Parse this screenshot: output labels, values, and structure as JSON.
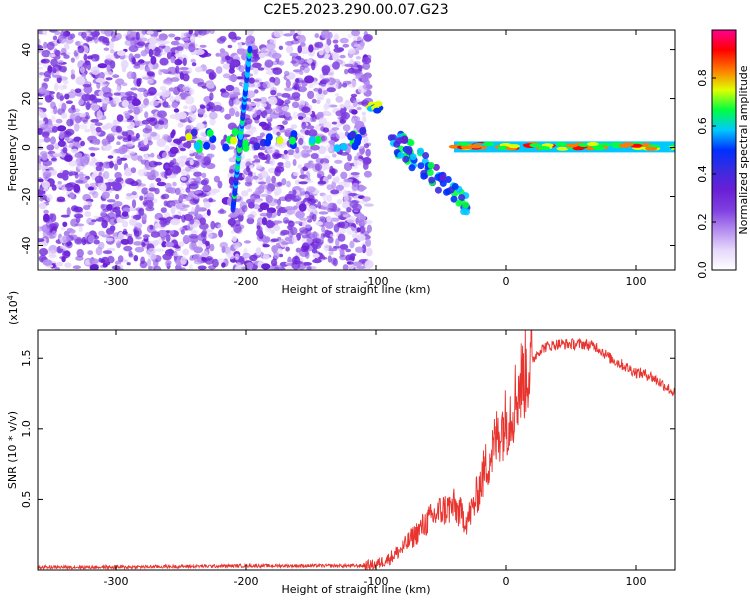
{
  "title": "C2E5.2023.290.00.07.G23",
  "colors": {
    "snr_line": "#e8332e",
    "colormap": [
      "#ffffff",
      "#e7d8fb",
      "#b48cf0",
      "#7f3fe0",
      "#6a1fd6",
      "#3a2be0",
      "#0030ff",
      "#00c8ff",
      "#00ff40",
      "#e0ff00",
      "#ff7a00",
      "#ff0000",
      "#ff0090"
    ]
  },
  "chart_data": [
    {
      "type": "heatmap",
      "xlabel": "Height of straight line (km)",
      "ylabel": "Frequency (Hz)",
      "xlim": [
        -360,
        130
      ],
      "ylim": [
        -50,
        48
      ],
      "xticks": [
        -300,
        -200,
        -100,
        0,
        100
      ],
      "yticks": [
        -40,
        -20,
        0,
        20,
        40
      ],
      "colorbar": {
        "label": "Normalized spectral amplitude",
        "range": [
          0,
          1
        ],
        "ticks": [
          "0.0",
          "0.2",
          "0.4",
          "0.6",
          "0.8"
        ]
      },
      "features": {
        "noise_region_km": [
          -360,
          -105
        ],
        "slanted_streak": {
          "x": [
            -210,
            -197
          ],
          "y": [
            -25,
            40
          ]
        },
        "carrier_line": {
          "x": [
            -40,
            130
          ],
          "y": [
            0,
            1
          ]
        },
        "descending_branch": {
          "x": [
            -90,
            -30
          ],
          "y": [
            5,
            -23
          ]
        },
        "early_patch": {
          "x": [
            -105,
            -95
          ],
          "y": [
            15,
            18
          ]
        }
      }
    },
    {
      "type": "line",
      "xlabel": "Height of straight line (km)",
      "ylabel": "SNR (10 * v/v)",
      "scale_note": "(x10",
      "scale_exp": "4",
      "scale_close": ")",
      "xlim": [
        -360,
        130
      ],
      "ylim": [
        0,
        1.7
      ],
      "xticks": [
        -300,
        -200,
        -100,
        0,
        100
      ],
      "yticks": [
        0.5,
        1.0,
        1.5
      ],
      "series": [
        {
          "x": [
            -360,
            -300,
            -250,
            -200,
            -150,
            -110,
            -100,
            -90,
            -80,
            -70,
            -60,
            -50,
            -40,
            -30,
            -25,
            -20,
            -15,
            -10,
            -5,
            0,
            5,
            10,
            15,
            20,
            25,
            30,
            40,
            50,
            60,
            70,
            80,
            90,
            100,
            110,
            120,
            130
          ],
          "y": [
            0.02,
            0.02,
            0.025,
            0.03,
            0.03,
            0.03,
            0.04,
            0.08,
            0.15,
            0.25,
            0.35,
            0.42,
            0.45,
            0.35,
            0.45,
            0.6,
            0.75,
            0.85,
            1.0,
            1.05,
            1.15,
            1.3,
            1.4,
            1.48,
            1.55,
            1.58,
            1.6,
            1.6,
            1.6,
            1.58,
            1.5,
            1.45,
            1.4,
            1.38,
            1.32,
            1.25
          ]
        }
      ]
    }
  ]
}
